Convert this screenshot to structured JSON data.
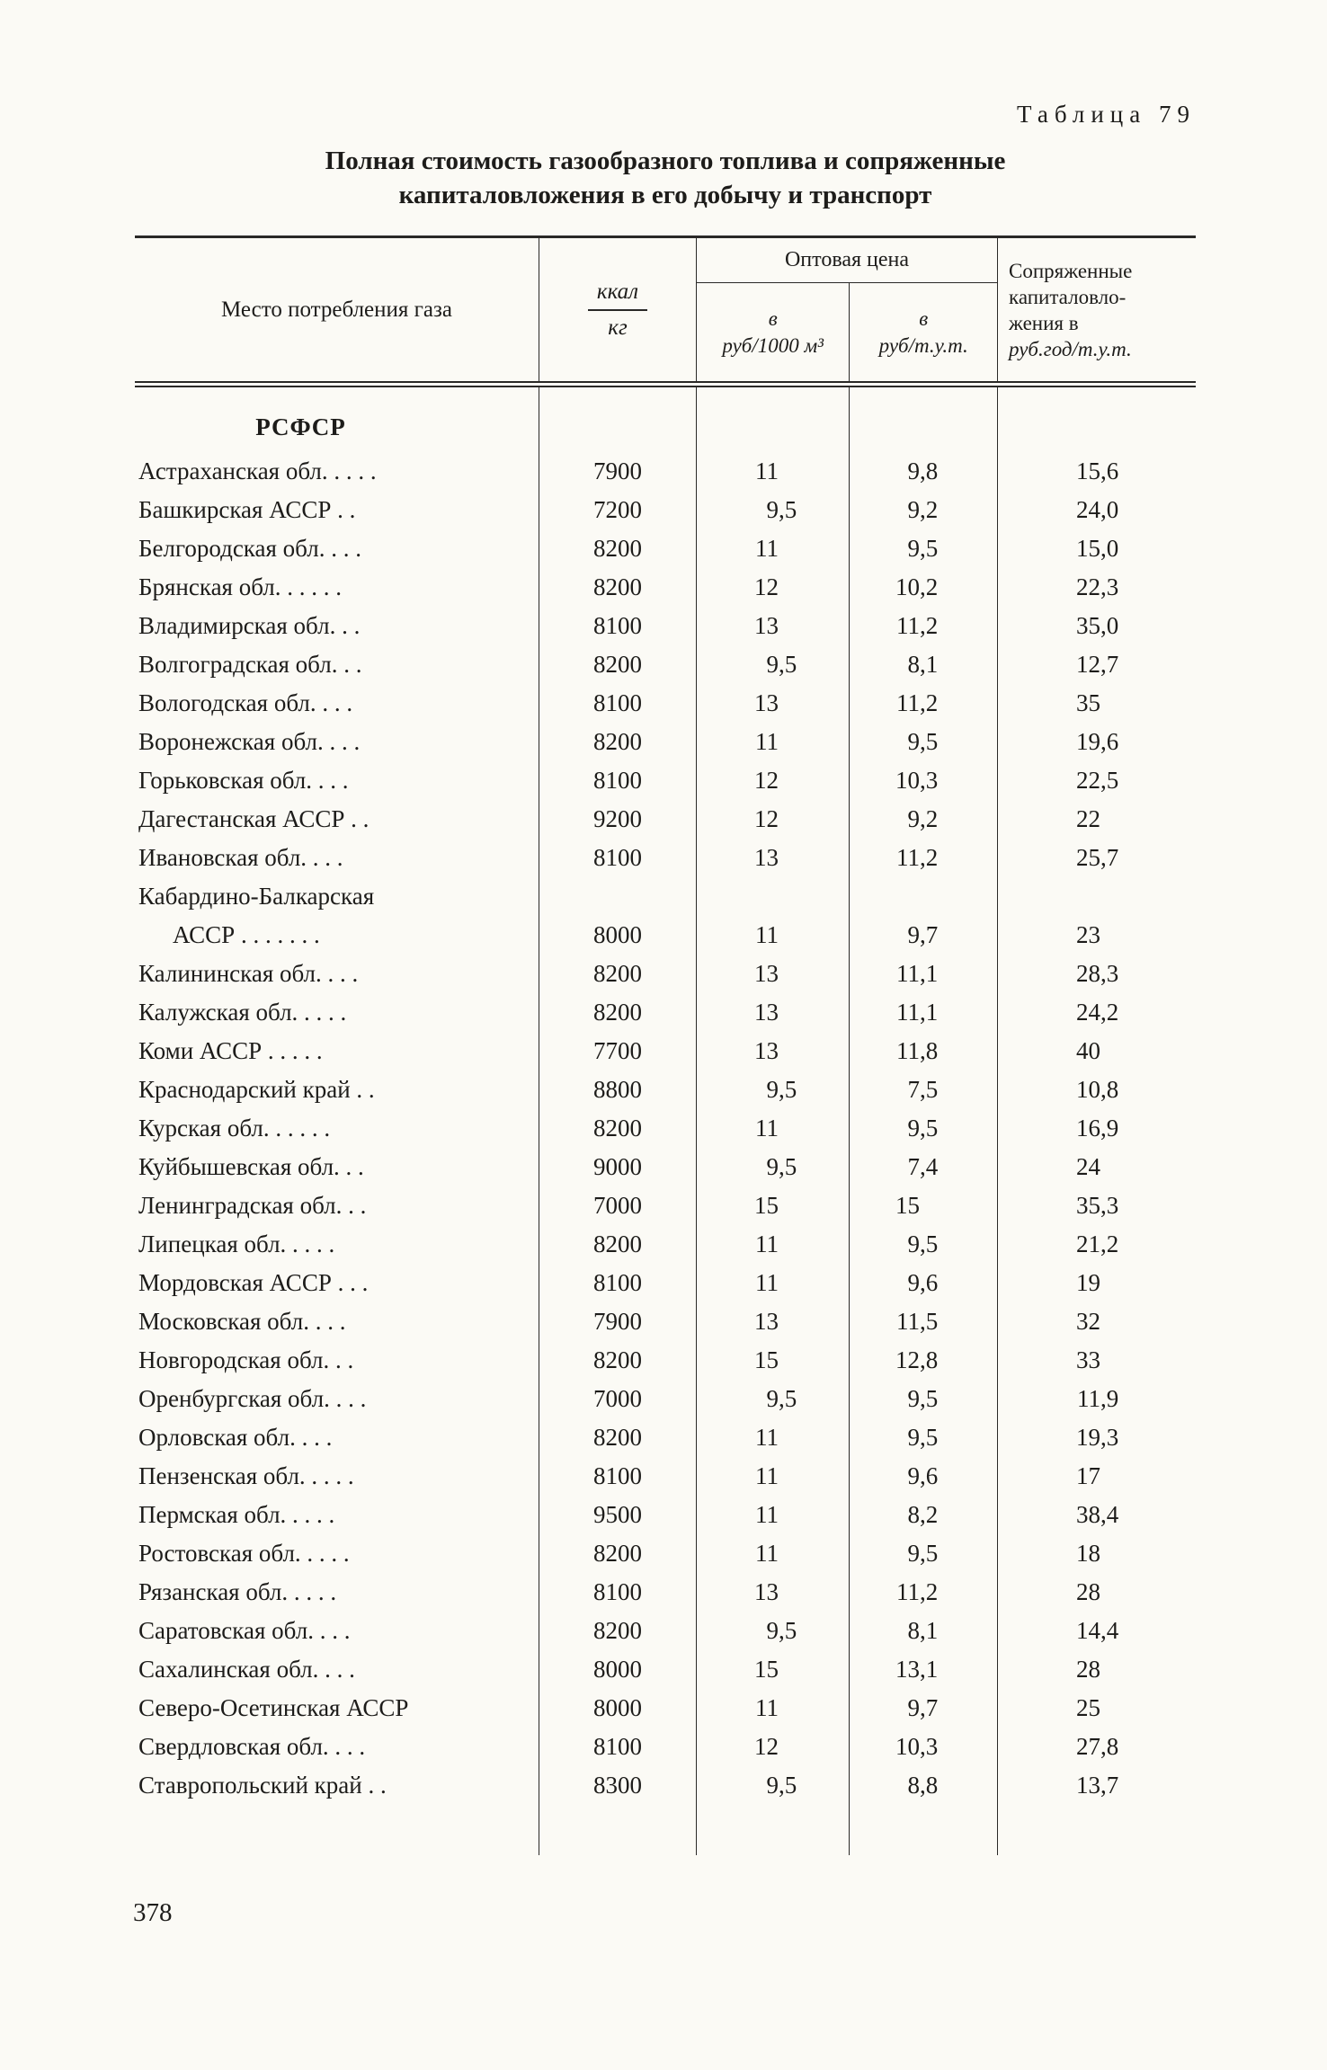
{
  "page": {
    "table_label": "Таблица 79",
    "title_line1": "Полная стоимость газообразного топлива и сопряженные",
    "title_line2": "капиталовложения в его добычу и транспорт",
    "page_number": "378"
  },
  "table": {
    "header": {
      "place": "Место потребления газа",
      "kcal_numerator": "ккал",
      "kcal_denominator": "кг",
      "wholesale_price": "Оптовая цена",
      "price_m3_line1": "в",
      "price_m3_line2": "руб/1000 м³",
      "price_tut_line1": "в",
      "price_tut_line2": "руб/т.у.т.",
      "capital_lines": [
        "Сопряженные",
        "капиталовло-",
        "жения в",
        "руб.год/т.у.т."
      ]
    },
    "section": "РСФСР",
    "rows": [
      {
        "place": "Астраханская обл. . . . .",
        "kcal": "7900",
        "rub_1000m3": "11",
        "rub_tut": "9,8",
        "capital": "15,6"
      },
      {
        "place": "Башкирская АССР . .",
        "kcal": "7200",
        "rub_1000m3": "9,5",
        "rub_tut": "9,2",
        "capital": "24,0"
      },
      {
        "place": "Белгородская обл. . . .",
        "kcal": "8200",
        "rub_1000m3": "11",
        "rub_tut": "9,5",
        "capital": "15,0"
      },
      {
        "place": "Брянская обл. . . . . .",
        "kcal": "8200",
        "rub_1000m3": "12",
        "rub_tut": "10,2",
        "capital": "22,3"
      },
      {
        "place": "Владимирская обл. . .",
        "kcal": "8100",
        "rub_1000m3": "13",
        "rub_tut": "11,2",
        "capital": "35,0"
      },
      {
        "place": "Волгоградская обл. . .",
        "kcal": "8200",
        "rub_1000m3": "9,5",
        "rub_tut": "8,1",
        "capital": "12,7"
      },
      {
        "place": "Вологодская обл. . . .",
        "kcal": "8100",
        "rub_1000m3": "13",
        "rub_tut": "11,2",
        "capital": "35"
      },
      {
        "place": "Воронежская обл. . . .",
        "kcal": "8200",
        "rub_1000m3": "11",
        "rub_tut": "9,5",
        "capital": "19,6"
      },
      {
        "place": "Горьковская обл. . . .",
        "kcal": "8100",
        "rub_1000m3": "12",
        "rub_tut": "10,3",
        "capital": "22,5"
      },
      {
        "place": "Дагестанская АССР . .",
        "kcal": "9200",
        "rub_1000m3": "12",
        "rub_tut": "9,2",
        "capital": "22"
      },
      {
        "place": "Ивановская обл. . . .",
        "kcal": "8100",
        "rub_1000m3": "13",
        "rub_tut": "11,2",
        "capital": "25,7"
      },
      {
        "place": "Кабардино-Балкарская",
        "kcal": "",
        "rub_1000m3": "",
        "rub_tut": "",
        "capital": ""
      },
      {
        "place": "АССР . . . . . . .",
        "kcal": "8000",
        "rub_1000m3": "11",
        "rub_tut": "9,7",
        "capital": "23",
        "indent": true
      },
      {
        "place": "Калининская обл. . . .",
        "kcal": "8200",
        "rub_1000m3": "13",
        "rub_tut": "11,1",
        "capital": "28,3"
      },
      {
        "place": "Калужская обл. . . . .",
        "kcal": "8200",
        "rub_1000m3": "13",
        "rub_tut": "11,1",
        "capital": "24,2"
      },
      {
        "place": "Коми АССР . . . . .",
        "kcal": "7700",
        "rub_1000m3": "13",
        "rub_tut": "11,8",
        "capital": "40"
      },
      {
        "place": "Краснодарский край . .",
        "kcal": "8800",
        "rub_1000m3": "9,5",
        "rub_tut": "7,5",
        "capital": "10,8"
      },
      {
        "place": "Курская обл. . . . . .",
        "kcal": "8200",
        "rub_1000m3": "11",
        "rub_tut": "9,5",
        "capital": "16,9"
      },
      {
        "place": "Куйбышевская обл. . .",
        "kcal": "9000",
        "rub_1000m3": "9,5",
        "rub_tut": "7,4",
        "capital": "24"
      },
      {
        "place": "Ленинградская обл. . .",
        "kcal": "7000",
        "rub_1000m3": "15",
        "rub_tut": "15",
        "capital": "35,3"
      },
      {
        "place": "Липецкая обл. . . . .",
        "kcal": "8200",
        "rub_1000m3": "11",
        "rub_tut": "9,5",
        "capital": "21,2"
      },
      {
        "place": "Мордовская АССР . . .",
        "kcal": "8100",
        "rub_1000m3": "11",
        "rub_tut": "9,6",
        "capital": "19"
      },
      {
        "place": "Московская обл. . . .",
        "kcal": "7900",
        "rub_1000m3": "13",
        "rub_tut": "11,5",
        "capital": "32"
      },
      {
        "place": "Новгородская обл. . .",
        "kcal": "8200",
        "rub_1000m3": "15",
        "rub_tut": "12,8",
        "capital": "33"
      },
      {
        "place": "Оренбургская обл. . . .",
        "kcal": "7000",
        "rub_1000m3": "9,5",
        "rub_tut": "9,5",
        "capital": "11,9"
      },
      {
        "place": "Орловская обл. . . .",
        "kcal": "8200",
        "rub_1000m3": "11",
        "rub_tut": "9,5",
        "capital": "19,3"
      },
      {
        "place": "Пензенская обл. . . . .",
        "kcal": "8100",
        "rub_1000m3": "11",
        "rub_tut": "9,6",
        "capital": "17"
      },
      {
        "place": "Пермская обл. . . . .",
        "kcal": "9500",
        "rub_1000m3": "11",
        "rub_tut": "8,2",
        "capital": "38,4"
      },
      {
        "place": "Ростовская обл. . . . .",
        "kcal": "8200",
        "rub_1000m3": "11",
        "rub_tut": "9,5",
        "capital": "18"
      },
      {
        "place": "Рязанская обл. . . . .",
        "kcal": "8100",
        "rub_1000m3": "13",
        "rub_tut": "11,2",
        "capital": "28"
      },
      {
        "place": "Саратовская обл. . . .",
        "kcal": "8200",
        "rub_1000m3": "9,5",
        "rub_tut": "8,1",
        "capital": "14,4"
      },
      {
        "place": "Сахалинская обл. . . .",
        "kcal": "8000",
        "rub_1000m3": "15",
        "rub_tut": "13,1",
        "capital": "28"
      },
      {
        "place": "Северо-Осетинская АССР",
        "kcal": "8000",
        "rub_1000m3": "11",
        "rub_tut": "9,7",
        "capital": "25"
      },
      {
        "place": "Свердловская обл. . . .",
        "kcal": "8100",
        "rub_1000m3": "12",
        "rub_tut": "10,3",
        "capital": "27,8"
      },
      {
        "place": "Ставропольский край . .",
        "kcal": "8300",
        "rub_1000m3": "9,5",
        "rub_tut": "8,8",
        "capital": "13,7"
      }
    ]
  }
}
